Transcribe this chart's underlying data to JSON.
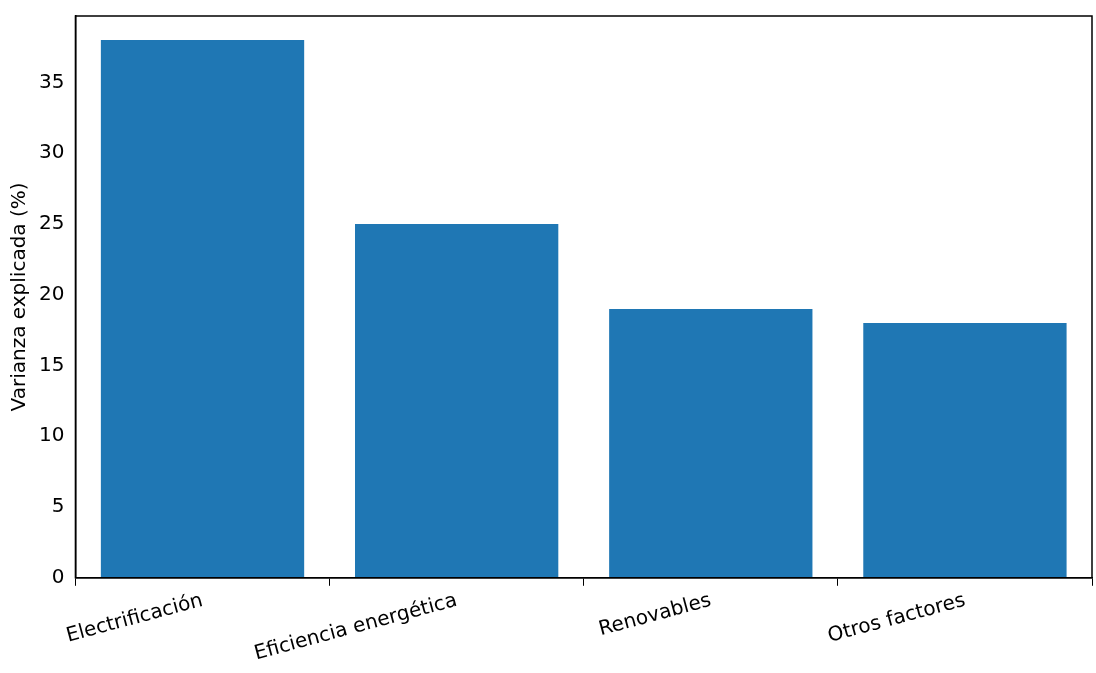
{
  "chart_data": {
    "type": "bar",
    "ylabel": "Varianza explicada (%)",
    "categories": [
      "Electrificación",
      "Eficiencia energética",
      "Renovables",
      "Otros factores"
    ],
    "values": [
      38,
      25,
      19,
      18
    ],
    "color": "#1f77b4",
    "ylim": [
      0,
      39.7
    ],
    "yticks": [
      0,
      5,
      10,
      15,
      20,
      25,
      30,
      35
    ],
    "grid": false,
    "legend": false
  }
}
